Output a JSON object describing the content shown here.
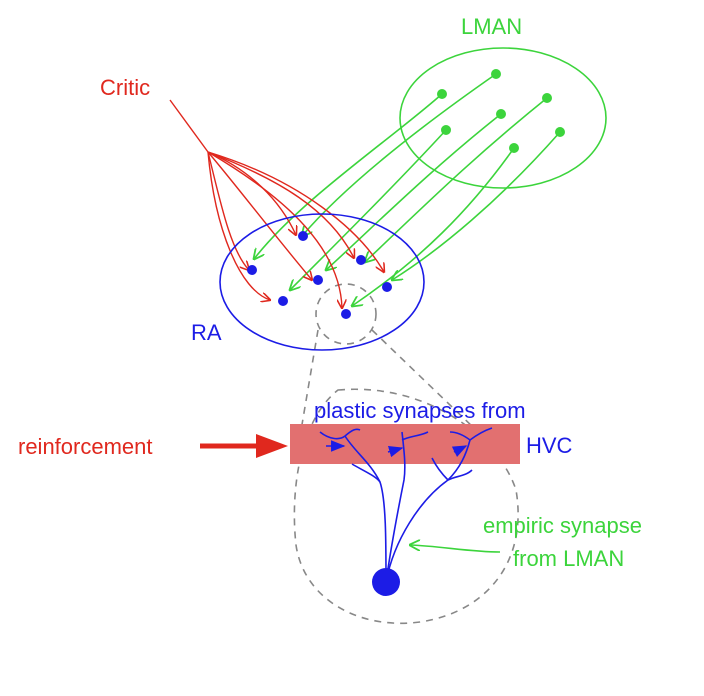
{
  "labels": {
    "critic": "Critic",
    "lman": "LMAN",
    "ra": "RA",
    "reinforcement": "reinforcement",
    "plastic_line1": "plastic synapses from",
    "plastic_line2": "HVC",
    "empiric_line1": "empiric synapse",
    "empiric_line2": "from LMAN"
  },
  "colors": {
    "critic": "#e0281e",
    "lman": "#3cd43c",
    "ra": "#1c1ce6",
    "reinforcement_band": "#e27070",
    "dashed_outline": "#888888"
  }
}
